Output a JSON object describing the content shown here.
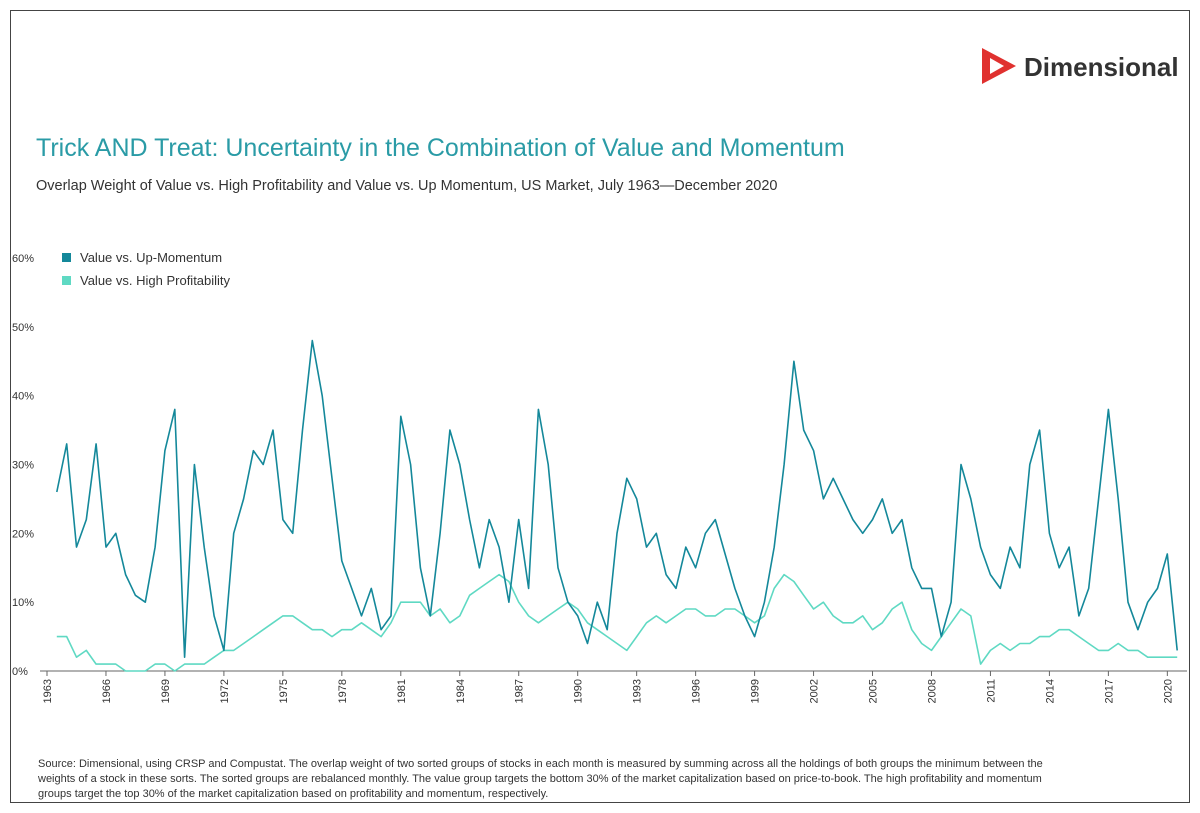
{
  "brand": "Dimensional",
  "chart_data": {
    "type": "line",
    "title": "Trick AND Treat: Uncertainty in the Combination of Value and Momentum",
    "subtitle": "Overlap Weight of Value vs. High Profitability and Value vs. Up Momentum, US Market, July 1963—December 2020",
    "source": "Source: Dimensional, using CRSP and Compustat. The overlap weight of two sorted groups of stocks in each month is measured by summing across all the holdings of both groups the minimum between the weights of a stock in these sorts. The sorted groups are rebalanced monthly. The value group targets the bottom 30% of the market capitalization based on price-to-book. The high profitability and momentum groups target the top 30% of the market capitalization based on profitability and momentum, respectively.",
    "legend": "top-left",
    "x": [
      1963.5,
      1964,
      1964.5,
      1965,
      1965.5,
      1966,
      1966.5,
      1967,
      1967.5,
      1968,
      1968.5,
      1969,
      1969.5,
      1970,
      1970.5,
      1971,
      1971.5,
      1972,
      1972.5,
      1973,
      1973.5,
      1974,
      1974.5,
      1975,
      1975.5,
      1976,
      1976.5,
      1977,
      1977.5,
      1978,
      1978.5,
      1979,
      1979.5,
      1980,
      1980.5,
      1981,
      1981.5,
      1982,
      1982.5,
      1983,
      1983.5,
      1984,
      1984.5,
      1985,
      1985.5,
      1986,
      1986.5,
      1987,
      1987.5,
      1988,
      1988.5,
      1989,
      1989.5,
      1990,
      1990.5,
      1991,
      1991.5,
      1992,
      1992.5,
      1993,
      1993.5,
      1994,
      1994.5,
      1995,
      1995.5,
      1996,
      1996.5,
      1997,
      1997.5,
      1998,
      1998.5,
      1999,
      1999.5,
      2000,
      2000.5,
      2001,
      2001.5,
      2002,
      2002.5,
      2003,
      2003.5,
      2004,
      2004.5,
      2005,
      2005.5,
      2006,
      2006.5,
      2007,
      2007.5,
      2008,
      2008.5,
      2009,
      2009.5,
      2010,
      2010.5,
      2011,
      2011.5,
      2012,
      2012.5,
      2013,
      2013.5,
      2014,
      2014.5,
      2015,
      2015.5,
      2016,
      2016.5,
      2017,
      2017.5,
      2018,
      2018.5,
      2019,
      2019.5,
      2020,
      2020.5
    ],
    "series": [
      {
        "name": "Value vs. Up-Momentum",
        "color": "#14889a",
        "values": [
          26,
          33,
          18,
          22,
          33,
          18,
          20,
          14,
          11,
          10,
          18,
          32,
          38,
          2,
          30,
          18,
          8,
          3,
          20,
          25,
          32,
          30,
          35,
          22,
          20,
          35,
          48,
          40,
          28,
          16,
          12,
          8,
          12,
          6,
          8,
          37,
          30,
          15,
          8,
          20,
          35,
          30,
          22,
          15,
          22,
          18,
          10,
          22,
          12,
          38,
          30,
          15,
          10,
          8,
          4,
          10,
          6,
          20,
          28,
          25,
          18,
          20,
          14,
          12,
          18,
          15,
          20,
          22,
          17,
          12,
          8,
          5,
          10,
          18,
          30,
          45,
          35,
          32,
          25,
          28,
          25,
          22,
          20,
          22,
          25,
          20,
          22,
          15,
          12,
          12,
          5,
          10,
          30,
          25,
          18,
          14,
          12,
          18,
          15,
          30,
          35,
          20,
          15,
          18,
          8,
          12,
          25,
          38,
          25,
          10,
          6,
          10,
          12,
          17,
          3
        ]
      },
      {
        "name": "Value vs. High Profitability",
        "color": "#5fd9c3",
        "values": [
          5,
          5,
          2,
          3,
          1,
          1,
          1,
          0,
          0,
          0,
          1,
          1,
          0,
          1,
          1,
          1,
          2,
          3,
          3,
          4,
          5,
          6,
          7,
          8,
          8,
          7,
          6,
          6,
          5,
          6,
          6,
          7,
          6,
          5,
          7,
          10,
          10,
          10,
          8,
          9,
          7,
          8,
          11,
          12,
          13,
          14,
          13,
          10,
          8,
          7,
          8,
          9,
          10,
          9,
          7,
          6,
          5,
          4,
          3,
          5,
          7,
          8,
          7,
          8,
          9,
          9,
          8,
          8,
          9,
          9,
          8,
          7,
          8,
          12,
          14,
          13,
          11,
          9,
          10,
          8,
          7,
          7,
          8,
          6,
          7,
          9,
          10,
          6,
          4,
          3,
          5,
          7,
          9,
          8,
          1,
          3,
          4,
          3,
          4,
          4,
          5,
          5,
          6,
          6,
          5,
          4,
          3,
          3,
          4,
          3,
          3,
          2,
          2,
          2,
          2
        ]
      }
    ],
    "xlim": [
      1963,
      2021
    ],
    "xticks": [
      1963,
      1966,
      1969,
      1972,
      1975,
      1978,
      1981,
      1984,
      1987,
      1990,
      1993,
      1996,
      1999,
      2002,
      2005,
      2008,
      2011,
      2014,
      2017,
      2020
    ],
    "ylim": [
      0,
      60
    ],
    "yticks": [
      {
        "value": 0,
        "label": "0%"
      },
      {
        "value": 10,
        "label": "10%"
      },
      {
        "value": 20,
        "label": "20%"
      },
      {
        "value": 30,
        "label": "30%"
      },
      {
        "value": 40,
        "label": "40%"
      },
      {
        "value": 50,
        "label": "50%"
      },
      {
        "value": 60,
        "label": "60%"
      }
    ]
  }
}
